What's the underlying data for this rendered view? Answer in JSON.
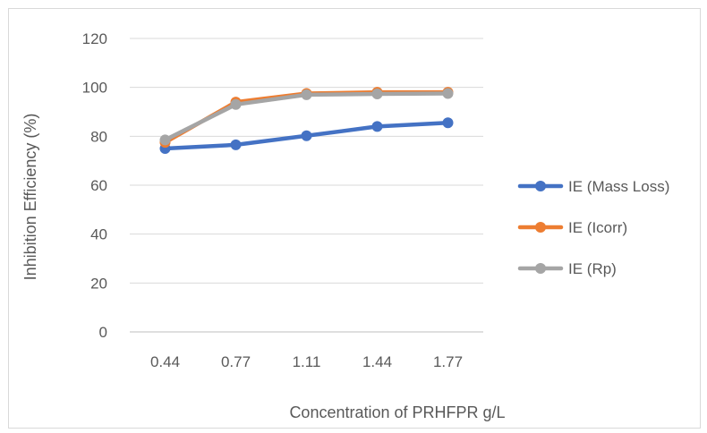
{
  "chart_data": {
    "type": "line",
    "categories": [
      "0.44",
      "0.77",
      "1.11",
      "1.44",
      "1.77"
    ],
    "series": [
      {
        "name": "IE (Mass Loss)",
        "color": "#4472c4",
        "values": [
          75,
          76.5,
          80.2,
          84,
          85.5
        ]
      },
      {
        "name": "IE (Icorr)",
        "color": "#ed7d31",
        "values": [
          77.5,
          94,
          97.5,
          98,
          98
        ]
      },
      {
        "name": "IE (Rp)",
        "color": "#a5a5a5",
        "values": [
          78.5,
          93,
          97,
          97.3,
          97.5
        ]
      }
    ],
    "title": "",
    "xlabel": "Concentration of PRHFPR  g/L",
    "ylabel": "Inhibition Efficiency (%)",
    "ylim": [
      0,
      120
    ],
    "yticks": [
      0,
      20,
      40,
      60,
      80,
      100,
      120
    ],
    "grid": true,
    "legend_position": "right"
  }
}
